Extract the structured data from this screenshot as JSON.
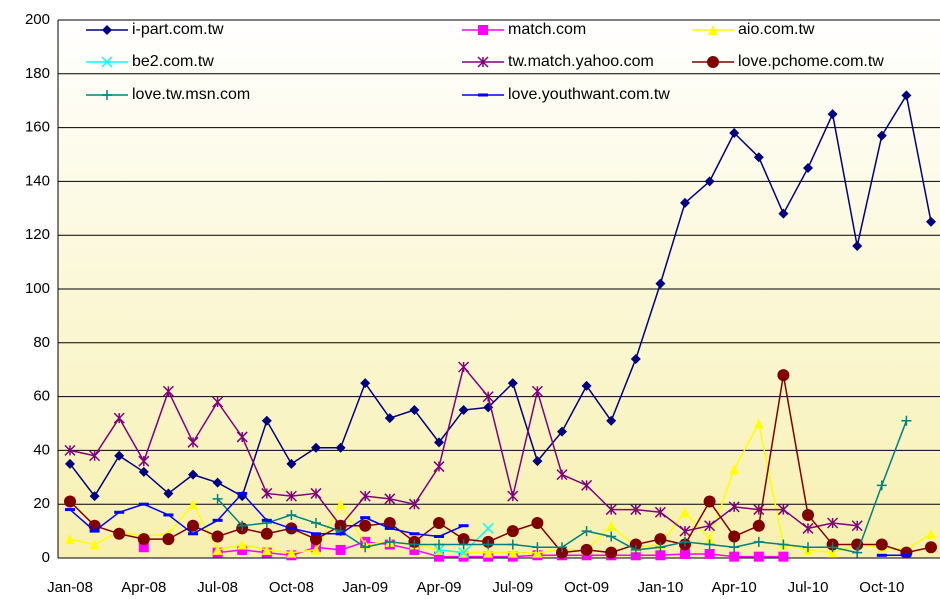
{
  "chart_data": {
    "type": "line",
    "categories": [
      "Jan-08",
      null,
      null,
      "Apr-08",
      null,
      null,
      "Jul-08",
      null,
      null,
      "Oct-08",
      null,
      null,
      "Jan-09",
      null,
      null,
      "Apr-09",
      null,
      null,
      "Jul-09",
      null,
      null,
      "Oct-09",
      null,
      null,
      "Jan-10",
      null,
      null,
      "Apr-10",
      null,
      null,
      "Jul-10",
      null,
      null,
      "Oct-10",
      null,
      null
    ],
    "ylim": [
      0,
      200
    ],
    "yticks": [
      0,
      20,
      40,
      60,
      80,
      100,
      120,
      140,
      160,
      180,
      200
    ],
    "grid": true,
    "series": [
      {
        "name": "i-part.com.tw",
        "color": "#000080",
        "marker": "diamond",
        "values": [
          35,
          23,
          38,
          32,
          24,
          31,
          28,
          23,
          51,
          35,
          41,
          41,
          65,
          52,
          55,
          43,
          55,
          56,
          65,
          36,
          47,
          64,
          51,
          74,
          102,
          132,
          140,
          158,
          149,
          128,
          145,
          165,
          116,
          157,
          172,
          125
        ]
      },
      {
        "name": "match.com",
        "color": "#ff00ff",
        "marker": "square",
        "values": [
          null,
          null,
          null,
          4,
          null,
          null,
          2,
          3,
          2,
          1,
          4,
          3,
          6,
          5,
          3,
          0.5,
          0.5,
          0.5,
          0.5,
          1,
          1,
          1,
          1,
          1,
          1,
          1.5,
          1.5,
          0.5,
          0.5,
          0.5,
          null,
          null,
          null,
          null,
          null,
          null
        ]
      },
      {
        "name": "aio.com.tw",
        "color": "#ffff00",
        "marker": "triangle",
        "values": [
          7,
          5,
          10,
          8,
          9,
          20,
          3,
          5,
          3,
          2,
          3,
          20,
          5,
          6,
          5,
          3,
          2,
          2,
          2,
          2,
          3,
          3,
          12,
          4,
          5,
          17,
          7,
          33,
          50,
          5,
          3,
          2,
          5,
          4,
          3,
          9
        ]
      },
      {
        "name": "be2.com.tw",
        "color": "#00ffff",
        "marker": "x",
        "values": [
          null,
          null,
          null,
          null,
          null,
          null,
          null,
          null,
          null,
          null,
          null,
          null,
          null,
          null,
          null,
          3,
          2,
          11,
          null,
          null,
          null,
          null,
          null,
          null,
          null,
          null,
          null,
          null,
          null,
          null,
          null,
          null,
          null,
          null,
          null,
          null
        ]
      },
      {
        "name": "tw.match.yahoo.com",
        "color": "#800080",
        "marker": "asterisk",
        "values": [
          40,
          38,
          52,
          36,
          62,
          43,
          58,
          45,
          24,
          23,
          24,
          12,
          23,
          22,
          20,
          34,
          71,
          60,
          23,
          62,
          31,
          27,
          18,
          18,
          17,
          10,
          12,
          19,
          18,
          18,
          11,
          13,
          12,
          null,
          null,
          null
        ]
      },
      {
        "name": "love.pchome.com.tw",
        "color": "#800000",
        "marker": "circle",
        "values": [
          21,
          12,
          9,
          7,
          7,
          12,
          8,
          11,
          9,
          11,
          7,
          12,
          12,
          13,
          6,
          13,
          7,
          6,
          10,
          13,
          2,
          3,
          2,
          5,
          7,
          5,
          21,
          8,
          12,
          68,
          16,
          5,
          5,
          5,
          2,
          4
        ]
      },
      {
        "name": "love.tw.msn.com",
        "color": "#008080",
        "marker": "plus",
        "values": [
          null,
          null,
          null,
          null,
          null,
          null,
          22,
          12,
          13,
          16,
          13,
          10,
          4,
          6,
          5,
          5,
          5,
          5,
          5,
          4,
          4,
          10,
          8,
          3,
          4,
          6,
          5,
          4,
          6,
          5,
          4,
          4,
          2,
          27,
          51,
          null
        ]
      },
      {
        "name": "love.youthwant.com.tw",
        "color": "#0000ff",
        "marker": "dash",
        "values": [
          18,
          10,
          17,
          20,
          16,
          9,
          14,
          24,
          14,
          11,
          9,
          9,
          15,
          11,
          9,
          8,
          12,
          null,
          null,
          null,
          null,
          null,
          null,
          null,
          null,
          null,
          null,
          null,
          null,
          null,
          null,
          null,
          null,
          1,
          1,
          null
        ]
      }
    ]
  }
}
